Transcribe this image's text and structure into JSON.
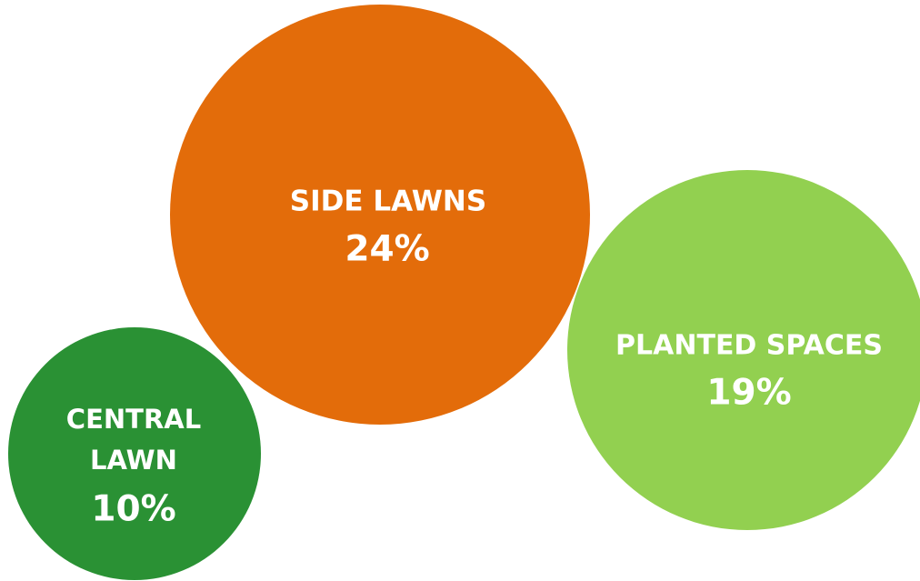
{
  "chart_data": {
    "type": "bubble",
    "title": "",
    "legend": "none",
    "grid": false,
    "series": [
      {
        "name": "SIDE LAWNS",
        "label_lines": [
          "SIDE LAWNS"
        ],
        "value": 24,
        "display_value": "24%",
        "color": "#E36C0A"
      },
      {
        "name": "PLANTED SPACES",
        "label_lines": [
          "PLANTED SPACES"
        ],
        "value": 19,
        "display_value": "19%",
        "color": "#92D050"
      },
      {
        "name": "CENTRAL LAWN",
        "label_lines": [
          "CENTRAL",
          "LAWN"
        ],
        "value": 10,
        "display_value": "10%",
        "color": "#2A9134"
      }
    ]
  }
}
